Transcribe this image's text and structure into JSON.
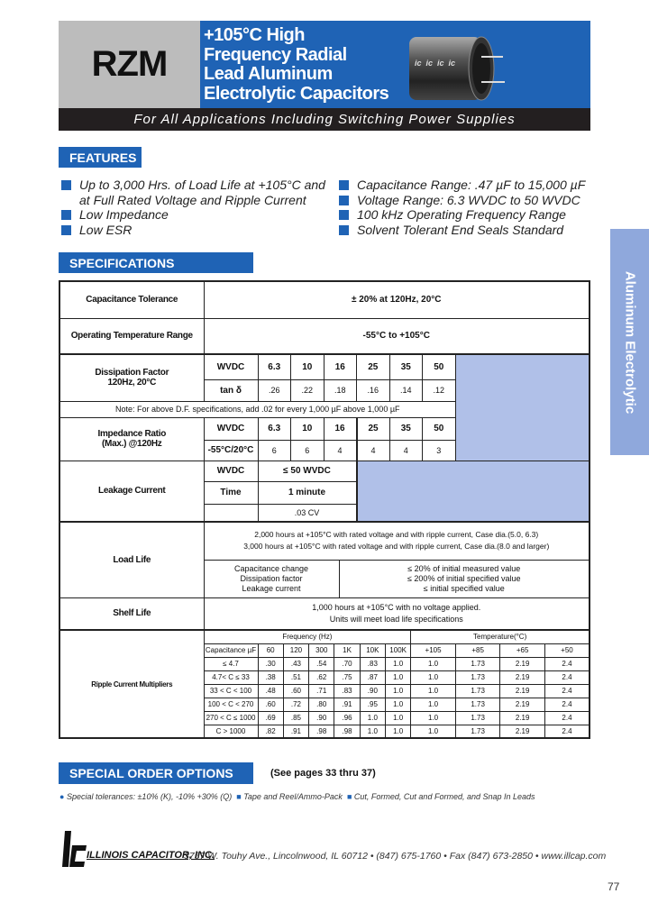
{
  "header": {
    "series": "RZM",
    "title_lines": [
      "+105°C High",
      "Frequency Radial",
      "Lead Aluminum",
      "Electrolytic Capacitors"
    ],
    "tagline": "For All Applications Including Switching Power Supplies",
    "cap_marking": "ic"
  },
  "side_tab": "Aluminum Electrolytic",
  "features": {
    "heading": "FEATURES",
    "left": [
      "Up to 3,000 Hrs. of Load Life at +105°C and at Full Rated Voltage and Ripple Current",
      "Low Impedance",
      "Low ESR"
    ],
    "right": [
      "Capacitance Range: .47 µF to 15,000 µF",
      "Voltage Range: 6.3 WVDC to 50 WVDC",
      "100 kHz Operating Frequency Range",
      "Solvent Tolerant End Seals Standard"
    ]
  },
  "specs": {
    "heading": "SPECIFICATIONS",
    "cap_tol": {
      "label": "Capacitance Tolerance",
      "value": "± 20% at 120Hz, 20°C"
    },
    "op_temp": {
      "label": "Operating Temperature Range",
      "value": "-55°C to +105°C"
    },
    "df": {
      "label1": "Dissipation Factor",
      "label2": "120Hz, 20°C",
      "row1": "WVDC",
      "row2": "tan δ",
      "wvdc": [
        "6.3",
        "10",
        "16",
        "25",
        "35",
        "50"
      ],
      "values": [
        ".26",
        ".22",
        ".18",
        ".16",
        ".14",
        ".12"
      ],
      "note": "Note: For above D.F. specifications, add .02 for every 1,000 µF above 1,000 µF"
    },
    "imp": {
      "label1": "Impedance Ratio",
      "label2": "(Max.) @120Hz",
      "row1": "WVDC",
      "row2": "-55°C/20°C",
      "wvdc": [
        "6.3",
        "10",
        "16",
        "25",
        "35",
        "50"
      ],
      "values": [
        "6",
        "6",
        "4",
        "4",
        "4",
        "3"
      ]
    },
    "leak": {
      "label": "Leakage Current",
      "r1": "WVDC",
      "r1v": "≤ 50 WVDC",
      "r2": "Time",
      "r2v": "1 minute",
      "r3v": ".03 CV"
    },
    "load": {
      "label": "Load Life",
      "line1": "2,000 hours at +105°C with rated voltage and with ripple current, Case dia.(5.0, 6.3)",
      "line2": "3,000 hours at +105°C with rated voltage and with ripple current, Case dia.(8.0 and larger)",
      "params": [
        "Capacitance change",
        "Dissipation factor",
        "Leakage current"
      ],
      "limits": [
        "≤ 20% of initial measured value",
        "≤ 200% of initial specified value",
        "≤ initial specified value"
      ]
    },
    "shelf": {
      "label": "Shelf Life",
      "line1": "1,000 hours at +105°C with no voltage applied.",
      "line2": "Units will meet load life specifications"
    },
    "ripple": {
      "label": "Ripple Current Multipliers",
      "freq_title": "Frequency (Hz)",
      "temp_title": "Temperature(°C)",
      "cap_header": "Capacitance µF",
      "freq": [
        "60",
        "120",
        "300",
        "1K",
        "10K",
        "100K"
      ],
      "temp": [
        "+105",
        "+85",
        "+65",
        "+50"
      ],
      "rows": [
        {
          "cap": "≤ 4.7",
          "f": [
            ".30",
            ".43",
            ".54",
            ".70",
            ".83",
            "1.0"
          ],
          "t": [
            "1.0",
            "1.73",
            "2.19",
            "2.4"
          ]
        },
        {
          "cap": "4.7< C ≤ 33",
          "f": [
            ".38",
            ".51",
            ".62",
            ".75",
            ".87",
            "1.0"
          ],
          "t": [
            "1.0",
            "1.73",
            "2.19",
            "2.4"
          ]
        },
        {
          "cap": "33 < C < 100",
          "f": [
            ".48",
            ".60",
            ".71",
            ".83",
            ".90",
            "1.0"
          ],
          "t": [
            "1.0",
            "1.73",
            "2.19",
            "2.4"
          ]
        },
        {
          "cap": "100 < C < 270",
          "f": [
            ".60",
            ".72",
            ".80",
            ".91",
            ".95",
            "1.0"
          ],
          "t": [
            "1.0",
            "1.73",
            "2.19",
            "2.4"
          ]
        },
        {
          "cap": "270 < C ≤ 1000",
          "f": [
            ".69",
            ".85",
            ".90",
            ".96",
            "1.0",
            "1.0"
          ],
          "t": [
            "1.0",
            "1.73",
            "2.19",
            "2.4"
          ]
        },
        {
          "cap": "C > 1000",
          "f": [
            ".82",
            ".91",
            ".98",
            ".98",
            "1.0",
            "1.0"
          ],
          "t": [
            "1.0",
            "1.73",
            "2.19",
            "2.4"
          ]
        }
      ]
    }
  },
  "special": {
    "heading": "SPECIAL ORDER OPTIONS",
    "pages": "(See pages 33 thru 37)",
    "options": [
      "Special tolerances: ±10% (K), -10% +30% (Q)",
      "Tape and Reel/Ammo-Pack",
      "Cut, Formed, Cut and Formed, and Snap In Leads"
    ]
  },
  "footer": {
    "company": "ILLINOIS CAPACITOR, INC.",
    "address": "3757 W. Touhy Ave., Lincolnwood, IL 60712 • (847) 675-1760 • Fax (847) 673-2850 • www.illcap.com",
    "page": "77"
  },
  "colors": {
    "brand_blue": "#1f63b5",
    "light_blue": "#b0c0e8",
    "side_tab": "#8fa8dc"
  }
}
